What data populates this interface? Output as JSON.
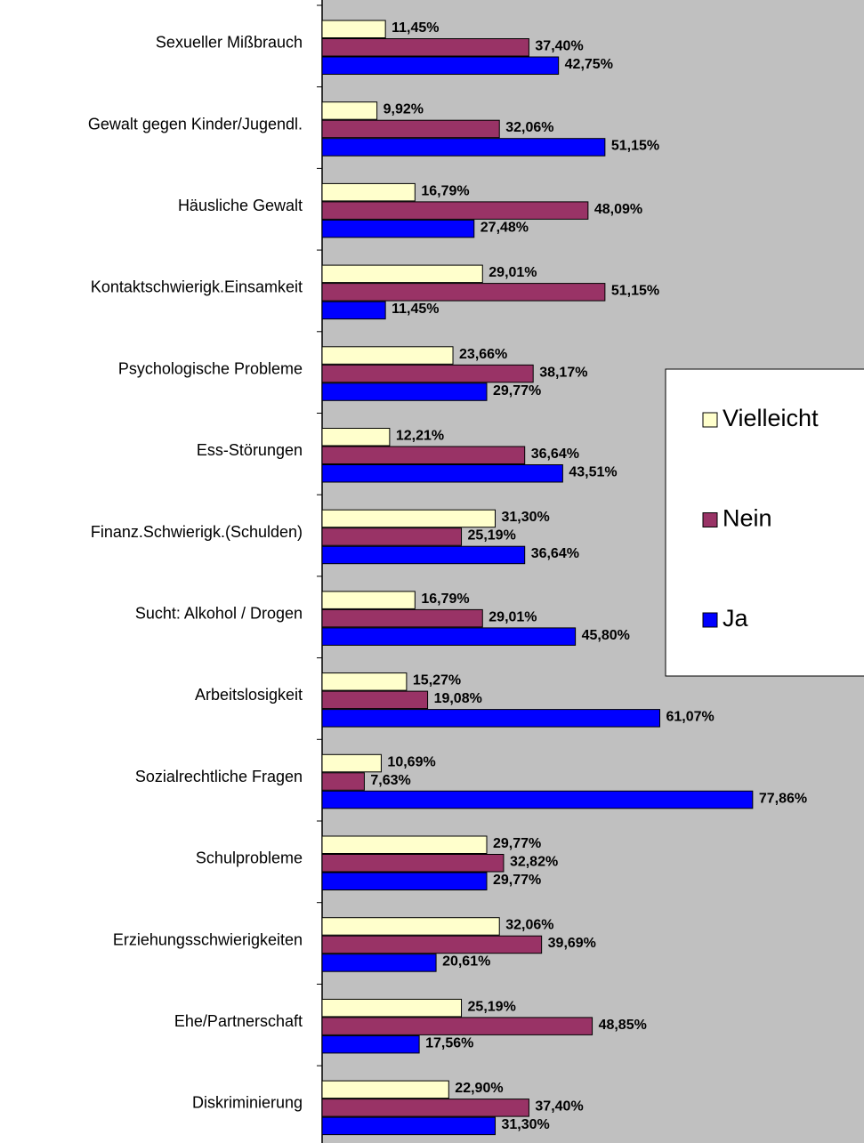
{
  "chart_data": {
    "type": "bar",
    "orientation": "horizontal",
    "categories": [
      "Sexueller Mißbrauch",
      "Gewalt gegen Kinder/Jugendl.",
      "Häusliche Gewalt",
      "Kontaktschwierigk.Einsamkeit",
      "Psychologische Probleme",
      "Ess-Störungen",
      "Finanz.Schwierigk.(Schulden)",
      "Sucht: Alkohol / Drogen",
      "Arbeitslosigkeit",
      "Sozialrechtliche Fragen",
      "Schulprobleme",
      "Erziehungsschwierigkeiten",
      "Ehe/Partnerschaft",
      "Diskriminierung"
    ],
    "series": [
      {
        "name": "Vielleicht",
        "color": "#ffffcc",
        "values": [
          11.45,
          9.92,
          16.79,
          29.01,
          23.66,
          12.21,
          31.3,
          16.79,
          15.27,
          10.69,
          29.77,
          32.06,
          25.19,
          22.9
        ],
        "value_labels": [
          "11,45%",
          "9,92%",
          "16,79%",
          "29,01%",
          "23,66%",
          "12,21%",
          "31,30%",
          "16,79%",
          "15,27%",
          "10,69%",
          "29,77%",
          "32,06%",
          "25,19%",
          "22,90%"
        ]
      },
      {
        "name": "Nein",
        "color": "#993366",
        "values": [
          37.4,
          32.06,
          48.09,
          51.15,
          38.17,
          36.64,
          25.19,
          29.01,
          19.08,
          7.63,
          32.82,
          39.69,
          48.85,
          37.4
        ],
        "value_labels": [
          "37,40%",
          "32,06%",
          "48,09%",
          "51,15%",
          "38,17%",
          "36,64%",
          "25,19%",
          "29,01%",
          "19,08%",
          "7,63%",
          "32,82%",
          "39,69%",
          "48,85%",
          "37,40%"
        ]
      },
      {
        "name": "Ja",
        "color": "#0000ff",
        "values": [
          42.75,
          51.15,
          27.48,
          11.45,
          29.77,
          43.51,
          36.64,
          45.8,
          61.07,
          77.86,
          29.77,
          20.61,
          17.56,
          31.3
        ],
        "value_labels": [
          "42,75%",
          "51,15%",
          "27,48%",
          "11,45%",
          "29,77%",
          "43,51%",
          "36,64%",
          "45,80%",
          "61,07%",
          "77,86%",
          "29,77%",
          "20,61%",
          "17,56%",
          "31,30%"
        ]
      }
    ],
    "xlim": [
      0,
      98
    ],
    "plot_background": "#c0c0c0",
    "legend": "right"
  }
}
